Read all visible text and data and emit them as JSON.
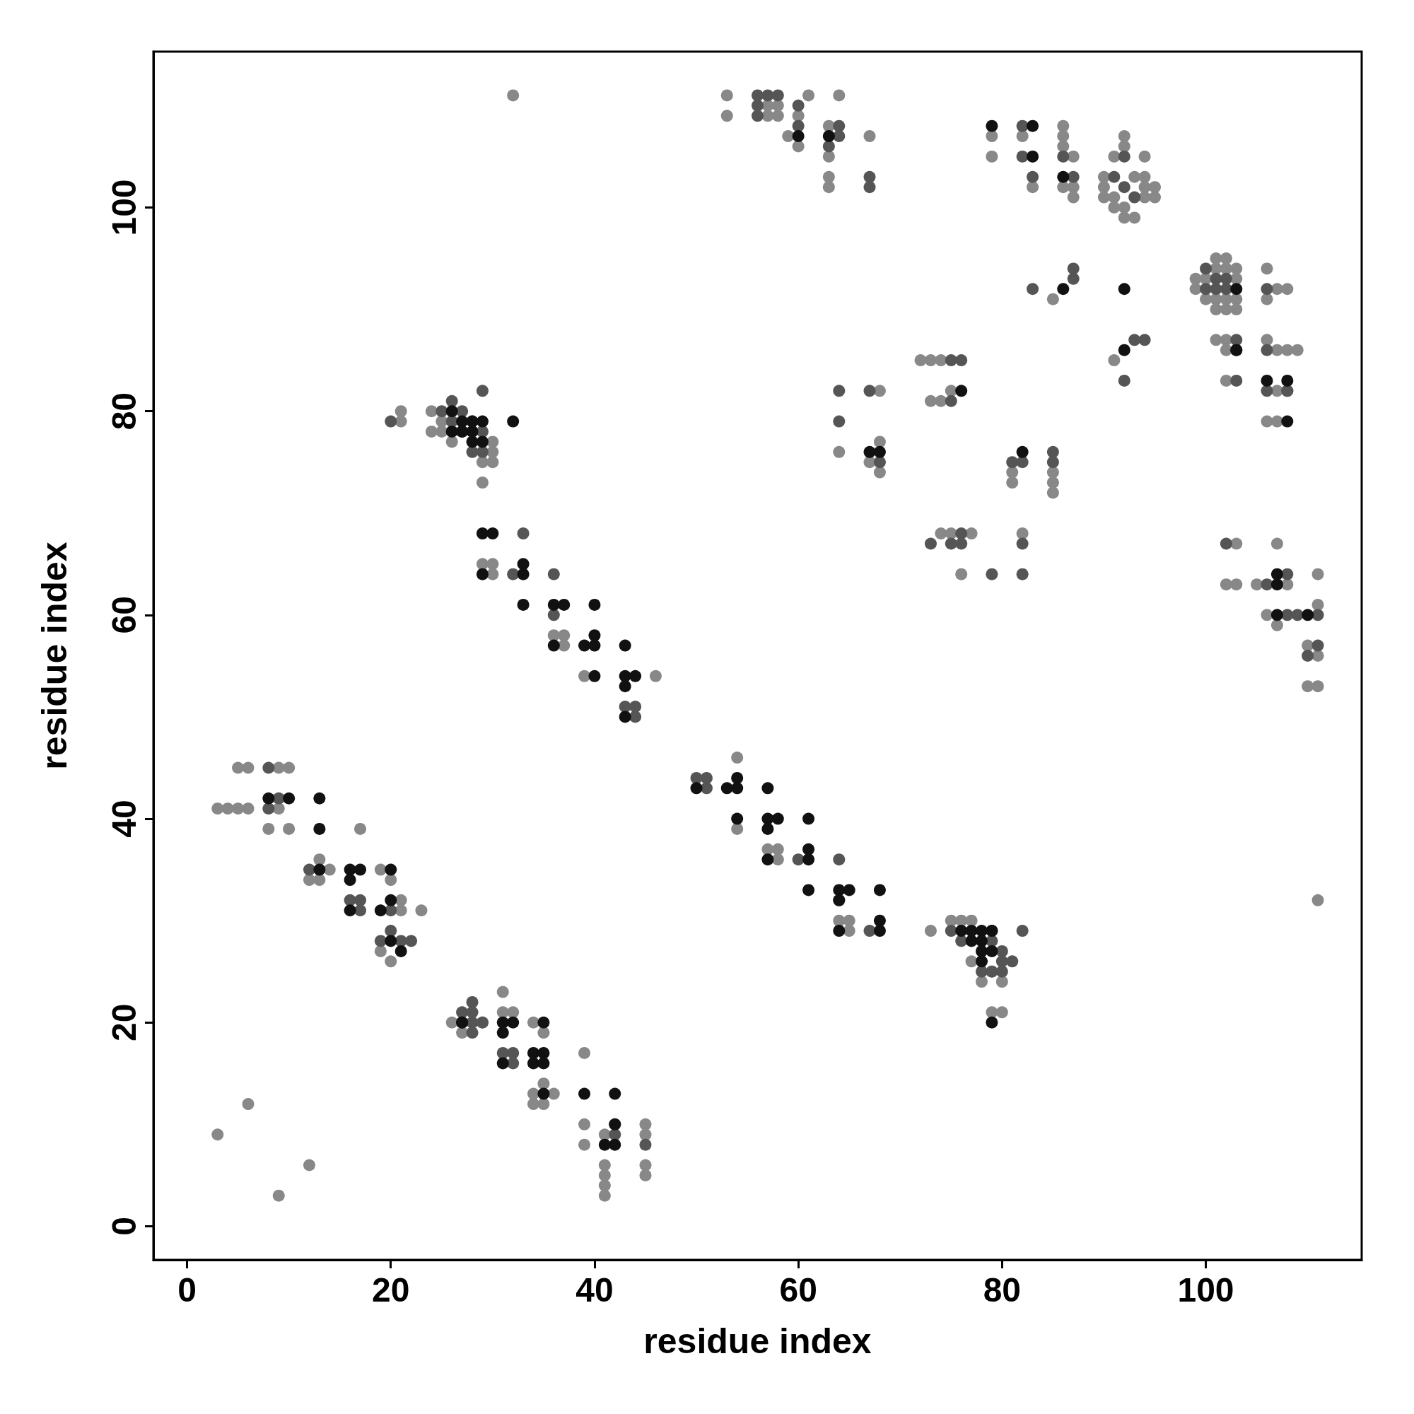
{
  "chart_data": {
    "type": "scatter",
    "xlabel": "residue index",
    "ylabel": "residue index",
    "xlim": [
      -3.3,
      115.3
    ],
    "ylim": [
      -3.3,
      115.3
    ],
    "xticks": [
      0,
      20,
      40,
      60,
      80,
      100
    ],
    "yticks": [
      0,
      20,
      40,
      60,
      80,
      100
    ],
    "grid": false,
    "marker": "circle",
    "series": [
      {
        "color": "#888888",
        "x": [
          3,
          6,
          9,
          12,
          3,
          4,
          5,
          6,
          9,
          5,
          6,
          9,
          10,
          9,
          8,
          10,
          12,
          13,
          13,
          14,
          17,
          19,
          20,
          21,
          21,
          23,
          19,
          20,
          26,
          27,
          29,
          31,
          32,
          31,
          34,
          35,
          35,
          34,
          34,
          35,
          36,
          39,
          39,
          39,
          41,
          41,
          41,
          41,
          41,
          45,
          45,
          45,
          45,
          21,
          21,
          24,
          24,
          25,
          25,
          26,
          30,
          30,
          29,
          30,
          29,
          29,
          30,
          30,
          36,
          37,
          37,
          39,
          46,
          54,
          54,
          57,
          58,
          58,
          64,
          65,
          65,
          73,
          75,
          76,
          77,
          77,
          79,
          78,
          80,
          79,
          80,
          111,
          32,
          53,
          53,
          57,
          58,
          57,
          58,
          59,
          61,
          60,
          60,
          63,
          63,
          63,
          63,
          64,
          67,
          79,
          79,
          82,
          83,
          86,
          86,
          86,
          87,
          86,
          87,
          87,
          91,
          92,
          92,
          94,
          90,
          93,
          94,
          90,
          94,
          95,
          90,
          91,
          94,
          95,
          91,
          92,
          92,
          93,
          85,
          91,
          99,
          101,
          102,
          99,
          100,
          101,
          102,
          103,
          103,
          100,
          101,
          102,
          103,
          101,
          102,
          103,
          106,
          106,
          107,
          108,
          101,
          102,
          102,
          106,
          107,
          108,
          109,
          102,
          107,
          106,
          107,
          103,
          102,
          103,
          105,
          107,
          108,
          106,
          107,
          111,
          111,
          110,
          111,
          110,
          111,
          64,
          68,
          67,
          68,
          68,
          72,
          73,
          74,
          73,
          74,
          75,
          81,
          81,
          85,
          85,
          85,
          74,
          75,
          77,
          76,
          82
        ],
        "values": [
          9,
          12,
          3,
          6,
          41,
          41,
          41,
          41,
          41,
          45,
          45,
          45,
          45,
          42,
          39,
          39,
          34,
          34,
          36,
          35,
          39,
          35,
          34,
          32,
          31,
          31,
          27,
          26,
          20,
          19,
          20,
          21,
          21,
          23,
          20,
          19,
          14,
          13,
          12,
          12,
          13,
          17,
          10,
          8,
          9,
          6,
          5,
          4,
          3,
          10,
          9,
          6,
          5,
          79,
          80,
          80,
          78,
          79,
          78,
          77,
          77,
          76,
          75,
          75,
          73,
          65,
          65,
          64,
          58,
          58,
          57,
          54,
          54,
          46,
          39,
          37,
          37,
          36,
          30,
          30,
          29,
          29,
          30,
          30,
          30,
          26,
          25,
          24,
          24,
          21,
          21,
          32,
          111,
          111,
          109,
          110,
          110,
          109,
          109,
          107,
          111,
          109,
          106,
          108,
          105,
          103,
          102,
          111,
          107,
          107,
          105,
          107,
          102,
          108,
          107,
          106,
          105,
          102,
          102,
          101,
          105,
          107,
          106,
          105,
          103,
          103,
          103,
          102,
          102,
          102,
          101,
          101,
          101,
          101,
          100,
          100,
          99,
          99,
          91,
          85,
          93,
          95,
          95,
          92,
          93,
          94,
          94,
          94,
          93,
          91,
          91,
          91,
          91,
          90,
          90,
          90,
          94,
          91,
          92,
          92,
          87,
          87,
          86,
          87,
          86,
          86,
          86,
          83,
          82,
          79,
          79,
          67,
          63,
          63,
          63,
          67,
          63,
          60,
          59,
          64,
          61,
          57,
          56,
          53,
          53,
          76,
          82,
          75,
          77,
          74,
          85,
          85,
          85,
          81,
          81,
          82,
          74,
          73,
          74,
          73,
          72,
          68,
          68,
          68,
          64,
          68
        ]
      },
      {
        "color": "#555555",
        "x": [
          8,
          8,
          9,
          12,
          16,
          17,
          17,
          20,
          20,
          21,
          22,
          19,
          27,
          28,
          28,
          28,
          29,
          28,
          31,
          32,
          32,
          42,
          45,
          42,
          20,
          25,
          26,
          26,
          27,
          28,
          28,
          29,
          29,
          29,
          33,
          32,
          36,
          36,
          43,
          44,
          44,
          50,
          51,
          51,
          60,
          64,
          64,
          67,
          75,
          76,
          79,
          79,
          80,
          80,
          81,
          80,
          78,
          79,
          82,
          56,
          57,
          58,
          56,
          56,
          60,
          60,
          64,
          64,
          63,
          67,
          67,
          82,
          82,
          83,
          86,
          87,
          92,
          91,
          92,
          93,
          83,
          87,
          87,
          93,
          94,
          92,
          100,
          100,
          101,
          102,
          101,
          102,
          106,
          103,
          106,
          103,
          106,
          108,
          102,
          106,
          108,
          108,
          108,
          109,
          111,
          111,
          110,
          64,
          64,
          67,
          68,
          75,
          76,
          75,
          81,
          82,
          85,
          85,
          73,
          75,
          76,
          76,
          79,
          82,
          82
        ],
        "values": [
          45,
          41,
          42,
          35,
          32,
          32,
          31,
          31,
          29,
          28,
          28,
          28,
          21,
          21,
          22,
          20,
          20,
          19,
          17,
          17,
          16,
          9,
          8,
          10,
          79,
          80,
          81,
          79,
          80,
          79,
          76,
          78,
          76,
          82,
          68,
          64,
          64,
          60,
          51,
          51,
          50,
          44,
          44,
          43,
          36,
          36,
          32,
          29,
          29,
          28,
          29,
          28,
          27,
          26,
          26,
          25,
          25,
          25,
          29,
          111,
          111,
          111,
          110,
          109,
          110,
          108,
          108,
          107,
          106,
          103,
          102,
          108,
          105,
          103,
          105,
          103,
          105,
          103,
          102,
          101,
          92,
          94,
          93,
          87,
          87,
          83,
          94,
          92,
          93,
          93,
          92,
          92,
          92,
          87,
          86,
          83,
          82,
          82,
          67,
          63,
          64,
          82,
          60,
          60,
          60,
          57,
          56,
          82,
          79,
          82,
          75,
          85,
          85,
          81,
          75,
          75,
          76,
          75,
          67,
          67,
          68,
          67,
          64,
          67,
          64
        ]
      },
      {
        "color": "#111111",
        "x": [
          8,
          10,
          13,
          13,
          13,
          16,
          17,
          16,
          16,
          20,
          19,
          20,
          20,
          21,
          27,
          27,
          31,
          32,
          31,
          31,
          35,
          34,
          35,
          34,
          35,
          35,
          39,
          42,
          42,
          41,
          42,
          26,
          26,
          27,
          27,
          28,
          28,
          28,
          27,
          29,
          29,
          32,
          29,
          30,
          29,
          33,
          33,
          33,
          36,
          37,
          36,
          39,
          40,
          40,
          40,
          40,
          43,
          43,
          44,
          43,
          43,
          50,
          53,
          54,
          54,
          54,
          57,
          57,
          58,
          57,
          57,
          61,
          61,
          61,
          61,
          64,
          65,
          64,
          68,
          68,
          68,
          76,
          77,
          78,
          78,
          78,
          78,
          79,
          79,
          79,
          77,
          60,
          63,
          79,
          83,
          83,
          86,
          92,
          86,
          92,
          103,
          103,
          103,
          106,
          108,
          108,
          107,
          107,
          107,
          110,
          67,
          68,
          76,
          82,
          64
        ],
        "values": [
          42,
          42,
          42,
          39,
          35,
          35,
          35,
          34,
          31,
          35,
          31,
          32,
          28,
          27,
          20,
          20,
          20,
          20,
          19,
          16,
          20,
          17,
          17,
          16,
          16,
          13,
          13,
          13,
          10,
          8,
          8,
          80,
          78,
          79,
          78,
          78,
          77,
          79,
          78,
          79,
          77,
          79,
          68,
          68,
          64,
          64,
          65,
          61,
          61,
          61,
          57,
          57,
          58,
          57,
          61,
          54,
          57,
          54,
          54,
          53,
          50,
          43,
          43,
          43,
          44,
          40,
          43,
          40,
          40,
          39,
          36,
          37,
          36,
          40,
          33,
          33,
          33,
          29,
          29,
          30,
          33,
          29,
          29,
          29,
          28,
          27,
          26,
          29,
          27,
          20,
          28,
          107,
          107,
          108,
          105,
          108,
          103,
          92,
          92,
          86,
          92,
          86,
          86,
          83,
          83,
          79,
          64,
          63,
          60,
          60,
          76,
          76,
          82,
          76,
          32
        ]
      }
    ]
  }
}
